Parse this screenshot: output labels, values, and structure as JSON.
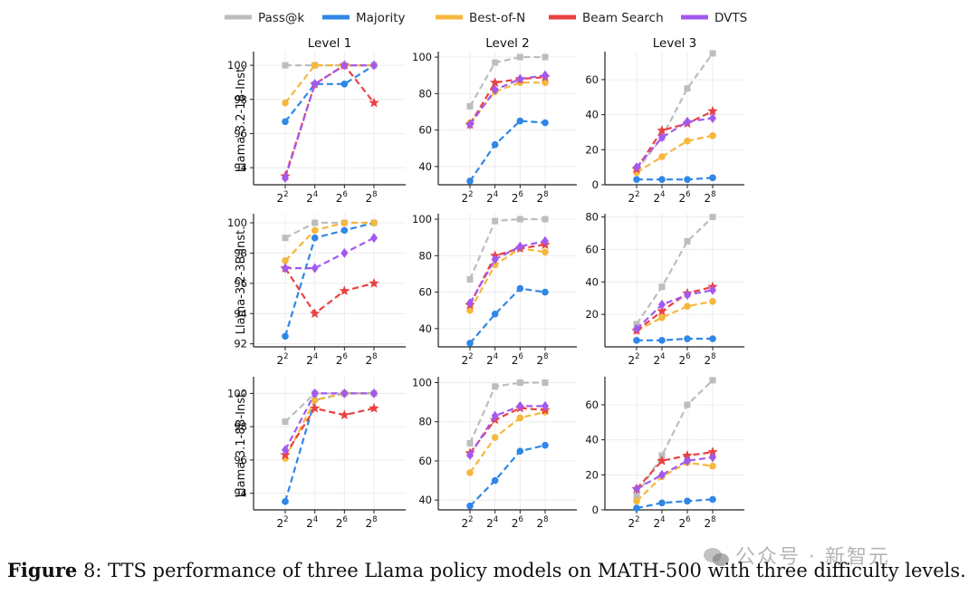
{
  "caption": {
    "label": "Figure",
    "number": "8",
    "text": ": TTS performance of three Llama policy models on MATH-500 with three difficulty levels."
  },
  "watermark": {
    "text": "公众号 · 新智元",
    "icon": "wechat-icon"
  },
  "colors": {
    "Pass@k": "#bdbdbd",
    "Majority": "#2f87e6",
    "Best-of-N": "#f6b73c",
    "Beam Search": "#ea4141",
    "DVTS": "#a259f0"
  },
  "markers": {
    "Pass@k": "square",
    "Majority": "circle",
    "Best-of-N": "circle",
    "Beam Search": "star",
    "DVTS": "diamond"
  },
  "chart_data": {
    "type": "line",
    "legend": [
      "Pass@k",
      "Majority",
      "Best-of-N",
      "Beam Search",
      "DVTS"
    ],
    "legend_position": "top",
    "column_titles": [
      "Level 1",
      "Level 2",
      "Level 3"
    ],
    "row_labels": [
      "Llama-3.2-1B-Inst.",
      "Llama-3.2-3B-Inst.",
      "Llama-3.1-8B-Inst."
    ],
    "x_exponents": [
      2,
      4,
      6,
      8
    ],
    "x_base": "2",
    "grid": true,
    "panels": [
      {
        "row": 0,
        "col": 0,
        "ylim": [
          93,
          100.8
        ],
        "yticks": [
          94,
          96,
          98,
          100
        ],
        "series": {
          "Pass@k": [
            100,
            100,
            100,
            100
          ],
          "Majority": [
            96.7,
            98.9,
            98.9,
            100
          ],
          "Best-of-N": [
            97.8,
            100,
            100,
            100
          ],
          "Beam Search": [
            93.5,
            98.9,
            100,
            97.8
          ],
          "DVTS": [
            93.4,
            98.9,
            100,
            100
          ]
        }
      },
      {
        "row": 0,
        "col": 1,
        "ylim": [
          30,
          103
        ],
        "yticks": [
          40,
          60,
          80,
          100
        ],
        "series": {
          "Pass@k": [
            73,
            97,
            100,
            100
          ],
          "Majority": [
            32,
            52,
            65,
            64
          ],
          "Best-of-N": [
            64,
            81,
            86,
            86
          ],
          "Beam Search": [
            63,
            86,
            88,
            89
          ],
          "DVTS": [
            63,
            82,
            88,
            90
          ]
        }
      },
      {
        "row": 0,
        "col": 2,
        "ylim": [
          0,
          76
        ],
        "yticks": [
          0,
          20,
          40,
          60
        ],
        "series": {
          "Pass@k": [
            8,
            27,
            55,
            75
          ],
          "Majority": [
            3,
            3,
            3,
            4
          ],
          "Best-of-N": [
            7,
            16,
            25,
            28
          ],
          "Beam Search": [
            9,
            31,
            35,
            42
          ],
          "DVTS": [
            10,
            27,
            36,
            38
          ]
        }
      },
      {
        "row": 1,
        "col": 0,
        "ylim": [
          91.8,
          100.6
        ],
        "yticks": [
          92,
          94,
          96,
          98,
          100
        ],
        "series": {
          "Pass@k": [
            99,
            100,
            100,
            100
          ],
          "Majority": [
            92.5,
            99,
            99.5,
            100
          ],
          "Best-of-N": [
            97.5,
            99.5,
            100,
            100
          ],
          "Beam Search": [
            97,
            94,
            95.5,
            96
          ],
          "DVTS": [
            97,
            97,
            98,
            99
          ]
        }
      },
      {
        "row": 1,
        "col": 1,
        "ylim": [
          30,
          103
        ],
        "yticks": [
          40,
          60,
          80,
          100
        ],
        "series": {
          "Pass@k": [
            67,
            99,
            100,
            100
          ],
          "Majority": [
            32,
            48,
            62,
            60
          ],
          "Best-of-N": [
            50,
            75,
            84,
            82
          ],
          "Beam Search": [
            53,
            80,
            84,
            86
          ],
          "DVTS": [
            54,
            78,
            85,
            88
          ]
        }
      },
      {
        "row": 1,
        "col": 2,
        "ylim": [
          0,
          82
        ],
        "yticks": [
          20,
          40,
          60,
          80
        ],
        "series": {
          "Pass@k": [
            14,
            37,
            65,
            80
          ],
          "Majority": [
            4,
            4,
            5,
            5
          ],
          "Best-of-N": [
            10,
            18,
            25,
            28
          ],
          "Beam Search": [
            10,
            22,
            33,
            37
          ],
          "DVTS": [
            11,
            26,
            32,
            35
          ]
        }
      },
      {
        "row": 2,
        "col": 0,
        "ylim": [
          93,
          101
        ],
        "yticks": [
          94,
          96,
          98,
          100
        ],
        "series": {
          "Pass@k": [
            98.3,
            100,
            100,
            100
          ],
          "Majority": [
            93.5,
            99.6,
            100,
            100
          ],
          "Best-of-N": [
            96.1,
            99.6,
            100,
            100
          ],
          "Beam Search": [
            96.3,
            99.1,
            98.7,
            99.1
          ],
          "DVTS": [
            96.6,
            100,
            100,
            100
          ]
        }
      },
      {
        "row": 2,
        "col": 1,
        "ylim": [
          35,
          103
        ],
        "yticks": [
          40,
          60,
          80,
          100
        ],
        "series": {
          "Pass@k": [
            69,
            98,
            100,
            100
          ],
          "Majority": [
            37,
            50,
            65,
            68
          ],
          "Best-of-N": [
            54,
            72,
            82,
            85
          ],
          "Beam Search": [
            64,
            81,
            87,
            86
          ],
          "DVTS": [
            63,
            83,
            88,
            88
          ]
        }
      },
      {
        "row": 2,
        "col": 2,
        "ylim": [
          0,
          76
        ],
        "yticks": [
          0,
          20,
          40,
          60
        ],
        "series": {
          "Pass@k": [
            8,
            31,
            60,
            74
          ],
          "Majority": [
            1,
            4,
            5,
            6
          ],
          "Best-of-N": [
            5,
            19,
            27,
            25
          ],
          "Beam Search": [
            12,
            28,
            31,
            33
          ],
          "DVTS": [
            12,
            20,
            28,
            30
          ]
        }
      }
    ]
  }
}
